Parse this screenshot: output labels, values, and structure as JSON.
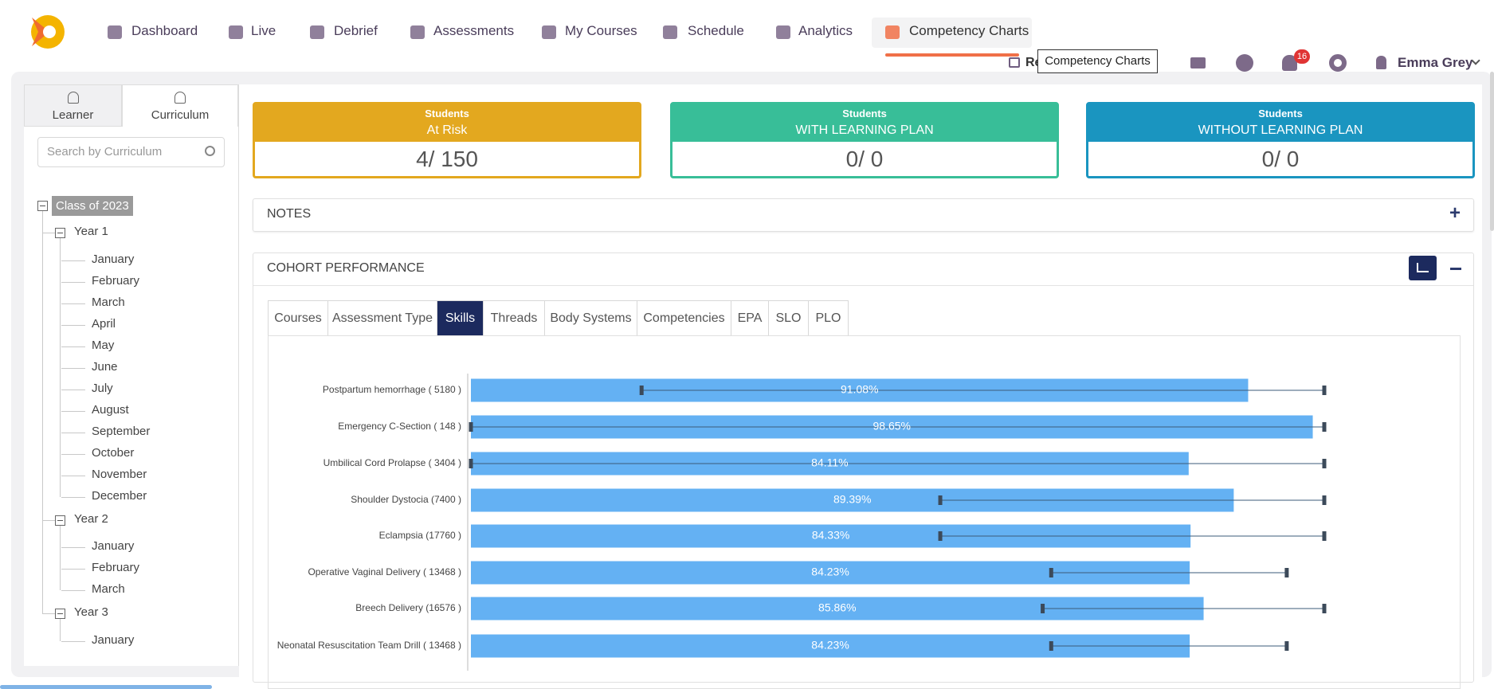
{
  "nav": {
    "items": [
      "Dashboard",
      "Live",
      "Debrief",
      "Assessments",
      "My Courses",
      "Schedule",
      "Analytics",
      "Competency Charts"
    ],
    "active": 7
  },
  "header": {
    "partial_link": "Re",
    "tooltip": "Competency Charts",
    "notification_count": "16",
    "user": "Emma Grey"
  },
  "sidebar": {
    "tabs": [
      "Learner",
      "Curriculum"
    ],
    "active_tab": 1,
    "search_placeholder": "Search by Curriculum",
    "tree": {
      "root": "Class of 2023",
      "years": [
        {
          "label": "Year 1",
          "months": [
            "January",
            "February",
            "March",
            "April",
            "May",
            "June",
            "July",
            "August",
            "September",
            "October",
            "November",
            "December"
          ]
        },
        {
          "label": "Year 2",
          "months": [
            "January",
            "February",
            "March"
          ]
        },
        {
          "label": "Year 3",
          "months": [
            "January"
          ]
        }
      ]
    }
  },
  "cards": [
    {
      "title": "Students",
      "subtitle": "At Risk",
      "value": "4/ 150",
      "color": "#e3a81f"
    },
    {
      "title": "Students",
      "subtitle": "WITH LEARNING PLAN",
      "value": "0/ 0",
      "color": "#38be98"
    },
    {
      "title": "Students",
      "subtitle": "WITHOUT LEARNING PLAN",
      "value": "0/ 0",
      "color": "#1a95c0"
    }
  ],
  "notes": {
    "title": "NOTES"
  },
  "cohort": {
    "title": "COHORT PERFORMANCE",
    "tabs": [
      "Courses",
      "Assessment Type",
      "Skills",
      "Threads",
      "Body Systems",
      "Competencies",
      "EPA",
      "SLO",
      "PLO"
    ],
    "active_tab": 2,
    "chart": {
      "type": "bar",
      "categories": [
        "Postpartum hemorrhage ( 5180 )",
        "Emergency C-Section ( 148 )",
        "Umbilical Cord Prolapse ( 3404 )",
        "Shoulder Dystocia  (7400 )",
        "Eclampsia  (17760 )",
        "Operative Vaginal Delivery  ( 13468 )",
        "Breech Delivery  (16576 )",
        "Neonatal Resuscitation Team Drill  ( 13468 )"
      ],
      "values": [
        91.08,
        98.65,
        84.11,
        89.39,
        84.33,
        84.23,
        85.86,
        84.23
      ],
      "value_labels": [
        "91.08%",
        "98.65%",
        "84.11%",
        "89.39%",
        "84.33%",
        "84.23%",
        "85.86%",
        "84.23%"
      ],
      "low": [
        20,
        0,
        0,
        55,
        55,
        68,
        67,
        68
      ],
      "high": [
        100,
        100,
        100,
        100,
        100,
        95.6,
        100,
        95.6
      ],
      "xlim": [
        0,
        100
      ],
      "color": "#64b1f3"
    }
  }
}
